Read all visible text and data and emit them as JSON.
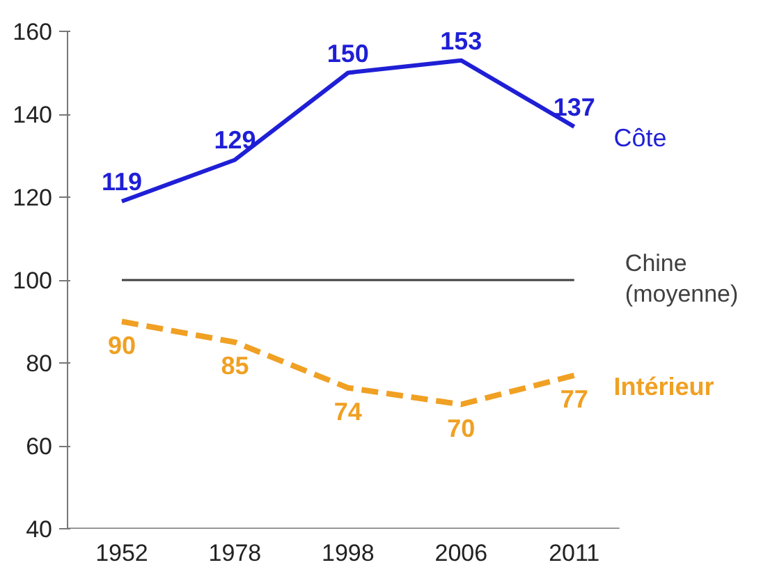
{
  "chart_data": {
    "type": "line",
    "categories": [
      "1952",
      "1978",
      "1998",
      "2006",
      "2011"
    ],
    "series": [
      {
        "name": "Côte",
        "color": "#1f1fd6",
        "values": [
          119,
          129,
          150,
          153,
          137
        ],
        "line_style": "solid"
      },
      {
        "name": "Intérieur",
        "color": "#f0a023",
        "values": [
          90,
          85,
          74,
          70,
          77
        ],
        "line_style": "dashed"
      }
    ],
    "ref_lines": [
      {
        "axis": "y",
        "value": 100,
        "label": "Chine\n(moyenne)",
        "color": "#404040"
      }
    ],
    "ylim": [
      40,
      160
    ],
    "yticks": [
      40,
      60,
      80,
      100,
      120,
      140,
      160
    ],
    "grid": false,
    "data_labels": true,
    "marker": "none"
  }
}
